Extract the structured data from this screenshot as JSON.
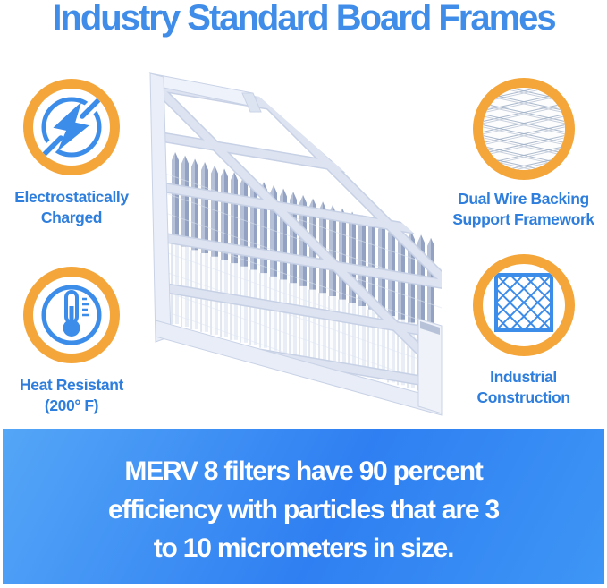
{
  "title": "Industry Standard Board Frames",
  "features": {
    "electrostatic": {
      "icon": "lightning-icon",
      "lines": [
        "Electrostatically",
        "Charged"
      ]
    },
    "wire": {
      "icon": "wire-mesh-icon",
      "lines": [
        "Dual Wire Backing",
        "Support Framework"
      ]
    },
    "heat": {
      "icon": "thermometer-icon",
      "lines": [
        "Heat Resistant",
        "(200° F)"
      ]
    },
    "industrial": {
      "icon": "lattice-grid-icon",
      "lines": [
        "Industrial",
        "Construction"
      ]
    }
  },
  "banner": {
    "lines": [
      "MERV 8 filters have 90 percent",
      "efficiency with particles that are 3",
      "to 10 micrometers in size."
    ]
  },
  "colors": {
    "title_blue": "#3f8de8",
    "label_blue": "#2e7edd",
    "icon_blue": "#3c8cea",
    "accent_orange": "#f4a63a",
    "banner_blue": "#2f7ff2",
    "banner_text": "#ffffff",
    "filter_pleat_gray": "#93a2c2",
    "filter_frame_light": "#e9eef8"
  }
}
